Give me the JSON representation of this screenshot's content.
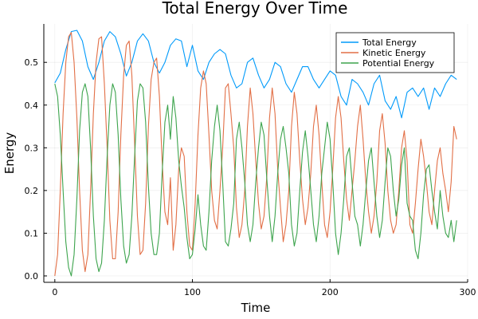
{
  "chart_data": {
    "type": "line",
    "title": "Total Energy Over Time",
    "xlabel": "Time",
    "ylabel": "Energy",
    "xlim": [
      -8,
      300
    ],
    "ylim": [
      -0.015,
      0.59
    ],
    "x_ticks": [
      0,
      100,
      200,
      300
    ],
    "y_ticks": [
      0.0,
      0.1,
      0.2,
      0.3,
      0.4,
      0.5
    ],
    "x_tick_labels": [
      "0",
      "100",
      "200",
      "300"
    ],
    "y_tick_labels": [
      "0.0",
      "0.1",
      "0.2",
      "0.3",
      "0.4",
      "0.5"
    ],
    "grid": true,
    "legend_position": "top-right",
    "series": [
      {
        "name": "Total Energy",
        "color": "#009AFA",
        "x": [
          0,
          4,
          8,
          12,
          16,
          20,
          24,
          28,
          32,
          36,
          40,
          44,
          48,
          52,
          56,
          60,
          64,
          68,
          72,
          76,
          80,
          84,
          88,
          92,
          96,
          100,
          104,
          108,
          112,
          116,
          120,
          124,
          128,
          132,
          136,
          140,
          144,
          148,
          152,
          156,
          160,
          164,
          168,
          172,
          176,
          180,
          184,
          188,
          192,
          196,
          200,
          204,
          208,
          212,
          216,
          220,
          224,
          228,
          232,
          236,
          240,
          244,
          248,
          252,
          256,
          260,
          264,
          268,
          272,
          276,
          280,
          284,
          288,
          292
        ],
        "values": [
          0.452,
          0.475,
          0.53,
          0.572,
          0.575,
          0.55,
          0.49,
          0.46,
          0.5,
          0.55,
          0.572,
          0.56,
          0.52,
          0.468,
          0.5,
          0.55,
          0.567,
          0.55,
          0.5,
          0.475,
          0.5,
          0.54,
          0.555,
          0.55,
          0.49,
          0.54,
          0.48,
          0.46,
          0.5,
          0.52,
          0.53,
          0.52,
          0.47,
          0.44,
          0.45,
          0.5,
          0.51,
          0.47,
          0.44,
          0.46,
          0.5,
          0.49,
          0.45,
          0.43,
          0.46,
          0.49,
          0.49,
          0.46,
          0.44,
          0.46,
          0.48,
          0.47,
          0.42,
          0.4,
          0.46,
          0.45,
          0.43,
          0.4,
          0.45,
          0.47,
          0.41,
          0.39,
          0.42,
          0.37,
          0.43,
          0.44,
          0.42,
          0.44,
          0.39,
          0.44,
          0.42,
          0.45,
          0.47,
          0.46
        ]
      },
      {
        "name": "Kinetic Energy",
        "color": "#E26F46",
        "x": [
          0,
          2,
          4,
          6,
          8,
          10,
          12,
          14,
          16,
          18,
          20,
          22,
          24,
          26,
          28,
          30,
          32,
          34,
          36,
          38,
          40,
          42,
          44,
          46,
          48,
          50,
          52,
          54,
          56,
          58,
          60,
          62,
          64,
          66,
          68,
          70,
          72,
          74,
          76,
          78,
          80,
          82,
          84,
          86,
          88,
          90,
          92,
          94,
          96,
          98,
          100,
          102,
          104,
          106,
          108,
          110,
          112,
          114,
          116,
          118,
          120,
          122,
          124,
          126,
          128,
          130,
          132,
          134,
          136,
          138,
          140,
          142,
          144,
          146,
          148,
          150,
          152,
          154,
          156,
          158,
          160,
          162,
          164,
          166,
          168,
          170,
          172,
          174,
          176,
          178,
          180,
          182,
          184,
          186,
          188,
          190,
          192,
          194,
          196,
          198,
          200,
          202,
          204,
          206,
          208,
          210,
          212,
          214,
          216,
          218,
          220,
          222,
          224,
          226,
          228,
          230,
          232,
          234,
          236,
          238,
          240,
          242,
          244,
          246,
          248,
          250,
          252,
          254,
          256,
          258,
          260,
          262,
          264,
          266,
          268,
          270,
          272,
          274,
          276,
          278,
          280,
          282,
          284,
          286,
          288,
          290,
          292
        ],
        "values": [
          0.0,
          0.05,
          0.2,
          0.38,
          0.5,
          0.56,
          0.57,
          0.5,
          0.37,
          0.2,
          0.06,
          0.01,
          0.05,
          0.2,
          0.38,
          0.5,
          0.555,
          0.56,
          0.45,
          0.3,
          0.13,
          0.04,
          0.04,
          0.15,
          0.33,
          0.47,
          0.54,
          0.55,
          0.47,
          0.31,
          0.14,
          0.05,
          0.06,
          0.17,
          0.35,
          0.46,
          0.5,
          0.51,
          0.42,
          0.27,
          0.15,
          0.12,
          0.23,
          0.06,
          0.12,
          0.25,
          0.3,
          0.28,
          0.15,
          0.07,
          0.06,
          0.17,
          0.33,
          0.44,
          0.48,
          0.45,
          0.33,
          0.2,
          0.13,
          0.11,
          0.2,
          0.3,
          0.44,
          0.45,
          0.38,
          0.3,
          0.16,
          0.09,
          0.12,
          0.2,
          0.35,
          0.44,
          0.38,
          0.27,
          0.17,
          0.11,
          0.14,
          0.23,
          0.37,
          0.44,
          0.38,
          0.25,
          0.16,
          0.08,
          0.12,
          0.2,
          0.35,
          0.43,
          0.38,
          0.27,
          0.18,
          0.12,
          0.16,
          0.24,
          0.35,
          0.4,
          0.33,
          0.22,
          0.12,
          0.09,
          0.15,
          0.25,
          0.37,
          0.42,
          0.37,
          0.27,
          0.18,
          0.13,
          0.2,
          0.27,
          0.35,
          0.4,
          0.32,
          0.22,
          0.15,
          0.1,
          0.14,
          0.22,
          0.34,
          0.38,
          0.31,
          0.2,
          0.13,
          0.1,
          0.12,
          0.2,
          0.3,
          0.34,
          0.27,
          0.12,
          0.1,
          0.17,
          0.25,
          0.32,
          0.28,
          0.22,
          0.15,
          0.12,
          0.2,
          0.27,
          0.3,
          0.24,
          0.2,
          0.15,
          0.22,
          0.35,
          0.32
        ]
      },
      {
        "name": "Potential Energy",
        "color": "#3DA44D",
        "x": [
          0,
          2,
          4,
          6,
          8,
          10,
          12,
          14,
          16,
          18,
          20,
          22,
          24,
          26,
          28,
          30,
          32,
          34,
          36,
          38,
          40,
          42,
          44,
          46,
          48,
          50,
          52,
          54,
          56,
          58,
          60,
          62,
          64,
          66,
          68,
          70,
          72,
          74,
          76,
          78,
          80,
          82,
          84,
          86,
          88,
          90,
          92,
          94,
          96,
          98,
          100,
          102,
          104,
          106,
          108,
          110,
          112,
          114,
          116,
          118,
          120,
          122,
          124,
          126,
          128,
          130,
          132,
          134,
          136,
          138,
          140,
          142,
          144,
          146,
          148,
          150,
          152,
          154,
          156,
          158,
          160,
          162,
          164,
          166,
          168,
          170,
          172,
          174,
          176,
          178,
          180,
          182,
          184,
          186,
          188,
          190,
          192,
          194,
          196,
          198,
          200,
          202,
          204,
          206,
          208,
          210,
          212,
          214,
          216,
          218,
          220,
          222,
          224,
          226,
          228,
          230,
          232,
          234,
          236,
          238,
          240,
          242,
          244,
          246,
          248,
          250,
          252,
          254,
          256,
          258,
          260,
          262,
          264,
          266,
          268,
          270,
          272,
          274,
          276,
          278,
          280,
          282,
          284,
          286,
          288,
          290,
          292
        ],
        "values": [
          0.45,
          0.42,
          0.33,
          0.2,
          0.08,
          0.02,
          0.0,
          0.05,
          0.18,
          0.34,
          0.43,
          0.45,
          0.42,
          0.3,
          0.14,
          0.04,
          0.01,
          0.03,
          0.13,
          0.28,
          0.4,
          0.45,
          0.43,
          0.33,
          0.18,
          0.07,
          0.03,
          0.05,
          0.14,
          0.28,
          0.41,
          0.45,
          0.44,
          0.36,
          0.21,
          0.1,
          0.05,
          0.05,
          0.1,
          0.24,
          0.36,
          0.4,
          0.32,
          0.42,
          0.37,
          0.27,
          0.21,
          0.16,
          0.09,
          0.04,
          0.05,
          0.11,
          0.19,
          0.12,
          0.07,
          0.06,
          0.15,
          0.27,
          0.35,
          0.4,
          0.34,
          0.22,
          0.08,
          0.07,
          0.11,
          0.17,
          0.32,
          0.36,
          0.3,
          0.22,
          0.12,
          0.08,
          0.12,
          0.22,
          0.3,
          0.36,
          0.33,
          0.23,
          0.14,
          0.08,
          0.14,
          0.24,
          0.32,
          0.35,
          0.3,
          0.24,
          0.12,
          0.07,
          0.1,
          0.2,
          0.29,
          0.34,
          0.28,
          0.2,
          0.12,
          0.08,
          0.14,
          0.24,
          0.3,
          0.36,
          0.32,
          0.22,
          0.1,
          0.05,
          0.1,
          0.18,
          0.28,
          0.3,
          0.22,
          0.14,
          0.12,
          0.07,
          0.12,
          0.2,
          0.27,
          0.3,
          0.22,
          0.14,
          0.09,
          0.13,
          0.22,
          0.3,
          0.28,
          0.2,
          0.14,
          0.18,
          0.26,
          0.3,
          0.17,
          0.14,
          0.13,
          0.06,
          0.04,
          0.1,
          0.19,
          0.25,
          0.26,
          0.2,
          0.15,
          0.11,
          0.2,
          0.14,
          0.1,
          0.09,
          0.13,
          0.08,
          0.13
        ]
      }
    ]
  }
}
